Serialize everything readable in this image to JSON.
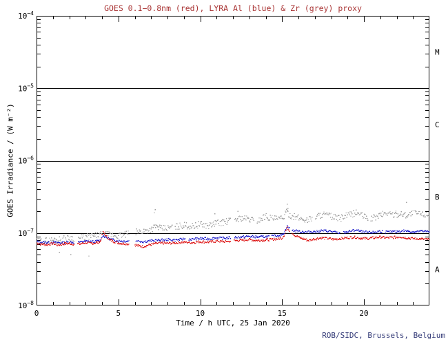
{
  "chart_data": {
    "type": "scatter",
    "title": "GOES 0.1−0.8nm (red), LYRA Al (blue) & Zr (grey) proxy",
    "xlabel": "Time / h UTC, 25 Jan 2020",
    "ylabel": "GOES Irradiance / (W m⁻²)",
    "credit": "ROB/SIDC, Brussels, Belgium",
    "title_color": "#a93434",
    "credit_color": "#333a77",
    "axis_color": "#000000",
    "x_range": [
      0,
      24
    ],
    "x_minor_step": 1,
    "x_major_ticks": [
      {
        "t": 0,
        "label": "0"
      },
      {
        "t": 5,
        "label": "5"
      },
      {
        "t": 10,
        "label": "10"
      },
      {
        "t": 15,
        "label": "15"
      },
      {
        "t": 20,
        "label": "20"
      }
    ],
    "y_log_range": [
      -8,
      -4
    ],
    "y_decades": [
      -4,
      -5,
      -6,
      -7,
      -8
    ],
    "hlines_log": [
      -5,
      -6,
      -7
    ],
    "grid": "off",
    "legend": "in-title",
    "flare_classes": [
      {
        "label": "M",
        "log_center": -4.5
      },
      {
        "label": "C",
        "log_center": -5.5
      },
      {
        "label": "B",
        "log_center": -6.5
      },
      {
        "label": "A",
        "log_center": -7.5
      }
    ],
    "series": [
      {
        "id": "goes_red",
        "name": "GOES 0.1−0.8nm",
        "color": "#dd1515",
        "seed": 7,
        "scatter_dex": 0.016,
        "step": 0.04,
        "gaps": [
          [
            2.32,
            2.5
          ],
          [
            5.65,
            6.0
          ],
          [
            11.85,
            12.05
          ],
          [
            15.47,
            15.58
          ]
        ],
        "points": [
          [
            0,
            7.3e-08
          ],
          [
            0.3,
            7e-08
          ],
          [
            0.7,
            6.9e-08
          ],
          [
            1,
            7.2e-08
          ],
          [
            1.3,
            6.8e-08
          ],
          [
            1.7,
            7.1e-08
          ],
          [
            2,
            7.2e-08
          ],
          [
            2.3,
            7e-08
          ],
          [
            2.7,
            7.1e-08
          ],
          [
            3,
            7.4e-08
          ],
          [
            3.3,
            7.2e-08
          ],
          [
            3.6,
            7.3e-08
          ],
          [
            3.9,
            7.6e-08
          ],
          [
            4.0,
            9.2e-08
          ],
          [
            4.1,
            1.04e-07
          ],
          [
            4.25,
            9e-08
          ],
          [
            4.5,
            8e-08
          ],
          [
            4.8,
            7.5e-08
          ],
          [
            5.1,
            7.2e-08
          ],
          [
            5.5,
            7.1e-08
          ],
          [
            5.9,
            7e-08
          ],
          [
            6.2,
            6.7e-08
          ],
          [
            6.5,
            6.5e-08
          ],
          [
            6.8,
            6.8e-08
          ],
          [
            7.2,
            7.1e-08
          ],
          [
            7.6,
            7.3e-08
          ],
          [
            8,
            7.2e-08
          ],
          [
            8.5,
            7.3e-08
          ],
          [
            9,
            7.5e-08
          ],
          [
            9.5,
            7.4e-08
          ],
          [
            10,
            7.6e-08
          ],
          [
            10.5,
            7.5e-08
          ],
          [
            11,
            7.7e-08
          ],
          [
            11.5,
            7.6e-08
          ],
          [
            12,
            7.8e-08
          ],
          [
            12.5,
            8e-08
          ],
          [
            13,
            8.1e-08
          ],
          [
            13.5,
            7.9e-08
          ],
          [
            14,
            8e-08
          ],
          [
            14.5,
            8.2e-08
          ],
          [
            15,
            8.5e-08
          ],
          [
            15.2,
            1e-07
          ],
          [
            15.3,
            1.2e-07
          ],
          [
            15.45,
            1.08e-07
          ],
          [
            15.6,
            1.02e-07
          ],
          [
            15.8,
            9.2e-08
          ],
          [
            16,
            8.8e-08
          ],
          [
            16.3,
            8.3e-08
          ],
          [
            16.6,
            7.9e-08
          ],
          [
            17,
            8.3e-08
          ],
          [
            17.4,
            8.6e-08
          ],
          [
            17.8,
            8.4e-08
          ],
          [
            18.2,
            8.2e-08
          ],
          [
            18.6,
            8.4e-08
          ],
          [
            19,
            8.6e-08
          ],
          [
            19.4,
            8.8e-08
          ],
          [
            19.8,
            8.5e-08
          ],
          [
            20.2,
            8.4e-08
          ],
          [
            20.6,
            8.6e-08
          ],
          [
            21,
            8.8e-08
          ],
          [
            21.4,
            8.6e-08
          ],
          [
            21.8,
            8.7e-08
          ],
          [
            22.2,
            8.9e-08
          ],
          [
            22.6,
            8.6e-08
          ],
          [
            23,
            8.4e-08
          ],
          [
            23.5,
            8.3e-08
          ],
          [
            24,
            8.1e-08
          ]
        ]
      },
      {
        "id": "lyra_al_blue",
        "name": "LYRA Al proxy",
        "color": "#2020cc",
        "seed": 13,
        "scatter_dex": 0.016,
        "step": 0.04,
        "gaps": [
          [
            2.3,
            2.55
          ],
          [
            5.65,
            6.05
          ],
          [
            9.1,
            9.3
          ],
          [
            11.85,
            12.1
          ],
          [
            14.2,
            14.35
          ],
          [
            15.47,
            15.6
          ],
          [
            18.55,
            18.75
          ],
          [
            21.15,
            21.3
          ]
        ],
        "points": [
          [
            0,
            7.6e-08
          ],
          [
            0.5,
            7.4e-08
          ],
          [
            1,
            7.5e-08
          ],
          [
            1.5,
            7.3e-08
          ],
          [
            2,
            7.5e-08
          ],
          [
            2.5,
            7.4e-08
          ],
          [
            3,
            7.7e-08
          ],
          [
            3.5,
            7.6e-08
          ],
          [
            3.9,
            7.9e-08
          ],
          [
            4.05,
            9.4e-08
          ],
          [
            4.2,
            8.8e-08
          ],
          [
            4.5,
            8.2e-08
          ],
          [
            5,
            7.8e-08
          ],
          [
            5.5,
            7.7e-08
          ],
          [
            6,
            7.9e-08
          ],
          [
            6.5,
            7.6e-08
          ],
          [
            7,
            7.8e-08
          ],
          [
            7.5,
            8e-08
          ],
          [
            8,
            8.1e-08
          ],
          [
            8.5,
            8e-08
          ],
          [
            9,
            8.3e-08
          ],
          [
            9.5,
            8.2e-08
          ],
          [
            10,
            8.4e-08
          ],
          [
            10.5,
            8.3e-08
          ],
          [
            11,
            8.6e-08
          ],
          [
            11.5,
            8.5e-08
          ],
          [
            12,
            8.7e-08
          ],
          [
            12.5,
            8.8e-08
          ],
          [
            13,
            9e-08
          ],
          [
            13.5,
            8.8e-08
          ],
          [
            14,
            8.9e-08
          ],
          [
            14.5,
            9.1e-08
          ],
          [
            15,
            9.4e-08
          ],
          [
            15.2,
            1.08e-07
          ],
          [
            15.3,
            1.26e-07
          ],
          [
            15.45,
            1.15e-07
          ],
          [
            15.6,
            1.1e-07
          ],
          [
            15.8,
            1.07e-07
          ],
          [
            16,
            1.06e-07
          ],
          [
            16.5,
            1.03e-07
          ],
          [
            17,
            1.05e-07
          ],
          [
            17.5,
            1.08e-07
          ],
          [
            18,
            1.05e-07
          ],
          [
            18.5,
            1e-07
          ],
          [
            19,
            1.04e-07
          ],
          [
            19.5,
            1.1e-07
          ],
          [
            20,
            1.03e-07
          ],
          [
            20.5,
            1.02e-07
          ],
          [
            21,
            1.06e-07
          ],
          [
            21.5,
            1.03e-07
          ],
          [
            22,
            1.05e-07
          ],
          [
            22.5,
            1.08e-07
          ],
          [
            23,
            1.04e-07
          ],
          [
            23.5,
            1.06e-07
          ],
          [
            24,
            1.04e-07
          ]
        ]
      },
      {
        "id": "lyra_zr_grey",
        "name": "LYRA Zr proxy",
        "color": "#a0a0a0",
        "seed": 29,
        "scatter_dex": 0.045,
        "step": 0.04,
        "gaps": [
          [
            2.3,
            2.55
          ],
          [
            5.65,
            6.05
          ],
          [
            8.3,
            8.45
          ],
          [
            11.85,
            12.1
          ],
          [
            13.3,
            13.45
          ],
          [
            16.85,
            17.0
          ],
          [
            20.25,
            20.4
          ],
          [
            23.0,
            23.1
          ]
        ],
        "outliers": [
          [
            1.4,
            5.4e-08
          ],
          [
            2.1,
            5e-08
          ],
          [
            3.2,
            4.8e-08
          ],
          [
            7.2,
            1.9e-07
          ],
          [
            7.25,
            2.1e-07
          ],
          [
            10.9,
            1.85e-07
          ],
          [
            12.3,
            2e-07
          ],
          [
            15.32,
            2.5e-07
          ],
          [
            15.36,
            2.2e-07
          ],
          [
            22.6,
            2.65e-07
          ]
        ],
        "points": [
          [
            0,
            7.6e-08
          ],
          [
            0.5,
            7.8e-08
          ],
          [
            1,
            8e-08
          ],
          [
            1.5,
            8.2e-08
          ],
          [
            2,
            8.6e-08
          ],
          [
            2.5,
            8.4e-08
          ],
          [
            3,
            8.8e-08
          ],
          [
            3.5,
            9.2e-08
          ],
          [
            4,
            9.6e-08
          ],
          [
            4.5,
            9.4e-08
          ],
          [
            5,
            9.2e-08
          ],
          [
            5.5,
            9.6e-08
          ],
          [
            6,
            1.02e-07
          ],
          [
            6.5,
            1.06e-07
          ],
          [
            7,
            1.12e-07
          ],
          [
            7.3,
            1.25e-07
          ],
          [
            7.6,
            1.15e-07
          ],
          [
            8,
            1.18e-07
          ],
          [
            8.5,
            1.22e-07
          ],
          [
            9,
            1.28e-07
          ],
          [
            9.5,
            1.24e-07
          ],
          [
            10,
            1.32e-07
          ],
          [
            10.5,
            1.26e-07
          ],
          [
            11,
            1.38e-07
          ],
          [
            11.5,
            1.42e-07
          ],
          [
            12,
            1.5e-07
          ],
          [
            12.5,
            1.62e-07
          ],
          [
            13,
            1.55e-07
          ],
          [
            13.5,
            1.48e-07
          ],
          [
            14,
            1.72e-07
          ],
          [
            14.3,
            1.62e-07
          ],
          [
            14.7,
            1.55e-07
          ],
          [
            15,
            1.6e-07
          ],
          [
            15.3,
            1.95e-07
          ],
          [
            15.5,
            1.75e-07
          ],
          [
            16,
            1.62e-07
          ],
          [
            16.5,
            1.5e-07
          ],
          [
            17,
            1.66e-07
          ],
          [
            17.5,
            1.82e-07
          ],
          [
            18,
            1.7e-07
          ],
          [
            18.5,
            1.58e-07
          ],
          [
            19,
            1.75e-07
          ],
          [
            19.6,
            1.92e-07
          ],
          [
            20,
            1.68e-07
          ],
          [
            20.5,
            1.58e-07
          ],
          [
            21,
            1.78e-07
          ],
          [
            21.4,
            1.9e-07
          ],
          [
            21.8,
            1.8e-07
          ],
          [
            22.2,
            1.85e-07
          ],
          [
            22.6,
            1.78e-07
          ],
          [
            23,
            1.88e-07
          ],
          [
            23.5,
            1.84e-07
          ],
          [
            24,
            1.8e-07
          ]
        ]
      }
    ]
  }
}
